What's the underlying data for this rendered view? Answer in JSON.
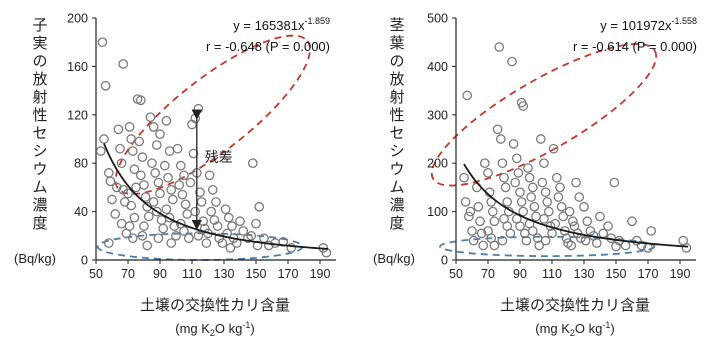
{
  "chart_data": [
    {
      "type": "scatter",
      "ylabel": "子実の放射性セシウム濃度",
      "yunit": "(Bq/kg)",
      "xlabel": "土壌の交換性カリ含量",
      "xunit": {
        "prefix": "(mg K",
        "sub": "2",
        "mid": "O kg",
        "sup": "-1",
        "suffix": ")"
      },
      "xlim": [
        50,
        200
      ],
      "ylim": [
        0,
        200
      ],
      "xticks": [
        50,
        70,
        90,
        110,
        130,
        150,
        170,
        190
      ],
      "yticks": [
        0,
        40,
        80,
        120,
        160,
        200
      ],
      "equation": {
        "prefix": "y = 165381x",
        "exp": "-1.859"
      },
      "correlation": "r = -0.648 (P = 0.000)",
      "fit": {
        "a": 165381,
        "b": -1.859,
        "x_range": [
          55,
          195
        ]
      },
      "annotation": "残差",
      "residual_arrow": {
        "x": 113,
        "y_from": 125,
        "y_to": 24
      },
      "ellipses": [
        {
          "name": "high-residual",
          "color": "#c0392b",
          "cx": 123,
          "cy": 120,
          "rx": 75,
          "ry": 30,
          "angle_deg": -38
        },
        {
          "name": "low-residual",
          "color": "#4a7fa8",
          "cx": 115,
          "cy": 11,
          "rx": 64,
          "ry": 11,
          "angle_deg": 0
        }
      ],
      "points": [
        [
          54,
          180
        ],
        [
          56,
          144
        ],
        [
          53,
          90
        ],
        [
          55,
          100
        ],
        [
          58,
          72
        ],
        [
          59,
          65
        ],
        [
          60,
          50
        ],
        [
          62,
          38
        ],
        [
          58,
          14
        ],
        [
          64,
          108
        ],
        [
          67,
          162
        ],
        [
          65,
          92
        ],
        [
          66,
          80
        ],
        [
          67,
          58
        ],
        [
          68,
          48
        ],
        [
          66,
          30
        ],
        [
          69,
          22
        ],
        [
          63,
          60
        ],
        [
          71,
          110
        ],
        [
          72,
          100
        ],
        [
          73,
          90
        ],
        [
          74,
          75
        ],
        [
          75,
          60
        ],
        [
          70,
          55
        ],
        [
          72,
          45
        ],
        [
          74,
          35
        ],
        [
          71,
          28
        ],
        [
          73,
          18
        ],
        [
          76,
          133
        ],
        [
          78,
          132
        ],
        [
          77,
          98
        ],
        [
          79,
          85
        ],
        [
          78,
          70
        ],
        [
          80,
          62
        ],
        [
          81,
          52
        ],
        [
          82,
          44
        ],
        [
          83,
          36
        ],
        [
          80,
          28
        ],
        [
          79,
          20
        ],
        [
          82,
          12
        ],
        [
          84,
          118
        ],
        [
          86,
          110
        ],
        [
          88,
          95
        ],
        [
          85,
          80
        ],
        [
          87,
          72
        ],
        [
          89,
          64
        ],
        [
          90,
          55
        ],
        [
          86,
          48
        ],
        [
          88,
          40
        ],
        [
          91,
          33
        ],
        [
          92,
          26
        ],
        [
          89,
          18
        ],
        [
          90,
          104
        ],
        [
          94,
          115
        ],
        [
          96,
          90
        ],
        [
          93,
          78
        ],
        [
          95,
          68
        ],
        [
          97,
          58
        ],
        [
          98,
          50
        ],
        [
          94,
          42
        ],
        [
          96,
          35
        ],
        [
          99,
          28
        ],
        [
          100,
          20
        ],
        [
          97,
          14
        ],
        [
          101,
          92
        ],
        [
          103,
          78
        ],
        [
          105,
          70
        ],
        [
          102,
          62
        ],
        [
          104,
          54
        ],
        [
          106,
          46
        ],
        [
          107,
          38
        ],
        [
          103,
          30
        ],
        [
          105,
          24
        ],
        [
          108,
          18
        ],
        [
          110,
          112
        ],
        [
          112,
          117
        ],
        [
          114,
          125
        ],
        [
          111,
          88
        ],
        [
          113,
          72
        ],
        [
          109,
          64
        ],
        [
          115,
          56
        ],
        [
          116,
          48
        ],
        [
          112,
          40
        ],
        [
          117,
          32
        ],
        [
          118,
          26
        ],
        [
          114,
          20
        ],
        [
          119,
          14
        ],
        [
          121,
          70
        ],
        [
          123,
          58
        ],
        [
          125,
          48
        ],
        [
          122,
          40
        ],
        [
          124,
          33
        ],
        [
          126,
          28
        ],
        [
          120,
          22
        ],
        [
          127,
          18
        ],
        [
          129,
          14
        ],
        [
          131,
          42
        ],
        [
          133,
          35
        ],
        [
          135,
          28
        ],
        [
          132,
          22
        ],
        [
          136,
          18
        ],
        [
          138,
          14
        ],
        [
          134,
          10
        ],
        [
          140,
          32
        ],
        [
          142,
          24
        ],
        [
          145,
          18
        ],
        [
          148,
          80
        ],
        [
          150,
          30
        ],
        [
          152,
          44
        ],
        [
          147,
          20
        ],
        [
          151,
          12
        ],
        [
          155,
          18
        ],
        [
          158,
          12
        ],
        [
          162,
          14
        ],
        [
          167,
          15
        ],
        [
          172,
          10
        ],
        [
          192,
          10
        ],
        [
          194,
          6
        ]
      ]
    },
    {
      "type": "scatter",
      "ylabel": "茎葉の放射性セシウム濃度",
      "yunit": "(Bq/kg)",
      "xlabel": "土壌の交換性カリ含量",
      "xunit": {
        "prefix": "(mg K",
        "sub": "2",
        "mid": "O kg",
        "sup": "-1",
        "suffix": ")"
      },
      "xlim": [
        50,
        200
      ],
      "ylim": [
        0,
        500
      ],
      "xticks": [
        50,
        70,
        90,
        110,
        130,
        150,
        170,
        190
      ],
      "yticks": [
        0,
        100,
        200,
        300,
        400,
        500
      ],
      "equation": {
        "prefix": "y = 101972x",
        "exp": "-1.558"
      },
      "correlation": "r = -0.614 (P = 0.000)",
      "fit": {
        "a": 101972,
        "b": -1.558,
        "x_range": [
          55,
          195
        ]
      },
      "ellipses": [
        {
          "name": "high-residual",
          "color": "#c0392b",
          "cx": 105,
          "cy": 300,
          "rx": 80,
          "ry": 72,
          "angle_deg": -30
        },
        {
          "name": "low-residual",
          "color": "#4a7fa8",
          "cx": 107,
          "cy": 28,
          "rx": 67,
          "ry": 20,
          "angle_deg": 0
        }
      ],
      "points": [
        [
          55,
          170
        ],
        [
          57,
          340
        ],
        [
          56,
          120
        ],
        [
          58,
          90
        ],
        [
          60,
          60
        ],
        [
          61,
          40
        ],
        [
          59,
          100
        ],
        [
          63,
          150
        ],
        [
          64,
          110
        ],
        [
          65,
          80
        ],
        [
          66,
          55
        ],
        [
          67,
          30
        ],
        [
          68,
          200
        ],
        [
          70,
          180
        ],
        [
          71,
          140
        ],
        [
          72,
          120
        ],
        [
          73,
          100
        ],
        [
          74,
          80
        ],
        [
          70,
          60
        ],
        [
          72,
          45
        ],
        [
          74,
          30
        ],
        [
          76,
          270
        ],
        [
          77,
          440
        ],
        [
          78,
          250
        ],
        [
          79,
          200
        ],
        [
          80,
          170
        ],
        [
          81,
          150
        ],
        [
          82,
          120
        ],
        [
          83,
          100
        ],
        [
          80,
          85
        ],
        [
          82,
          70
        ],
        [
          84,
          55
        ],
        [
          79,
          40
        ],
        [
          85,
          410
        ],
        [
          86,
          240
        ],
        [
          88,
          210
        ],
        [
          89,
          180
        ],
        [
          87,
          160
        ],
        [
          90,
          140
        ],
        [
          91,
          120
        ],
        [
          92,
          100
        ],
        [
          88,
          85
        ],
        [
          90,
          70
        ],
        [
          93,
          55
        ],
        [
          94,
          40
        ],
        [
          91,
          325
        ],
        [
          92,
          318
        ],
        [
          95,
          190
        ],
        [
          96,
          170
        ],
        [
          98,
          150
        ],
        [
          97,
          130
        ],
        [
          99,
          110
        ],
        [
          100,
          90
        ],
        [
          96,
          75
        ],
        [
          98,
          60
        ],
        [
          101,
          45
        ],
        [
          102,
          30
        ],
        [
          103,
          250
        ],
        [
          105,
          200
        ],
        [
          104,
          160
        ],
        [
          106,
          140
        ],
        [
          107,
          120
        ],
        [
          108,
          100
        ],
        [
          105,
          85
        ],
        [
          109,
          70
        ],
        [
          110,
          55
        ],
        [
          106,
          40
        ],
        [
          111,
          230
        ],
        [
          113,
          170
        ],
        [
          115,
          150
        ],
        [
          114,
          130
        ],
        [
          116,
          110
        ],
        [
          117,
          90
        ],
        [
          112,
          75
        ],
        [
          118,
          60
        ],
        [
          119,
          45
        ],
        [
          120,
          35
        ],
        [
          121,
          100
        ],
        [
          123,
          80
        ],
        [
          125,
          160
        ],
        [
          127,
          130
        ],
        [
          124,
          70
        ],
        [
          126,
          55
        ],
        [
          128,
          45
        ],
        [
          122,
          30
        ],
        [
          130,
          110
        ],
        [
          132,
          80
        ],
        [
          134,
          60
        ],
        [
          136,
          50
        ],
        [
          131,
          40
        ],
        [
          138,
          35
        ],
        [
          140,
          90
        ],
        [
          142,
          55
        ],
        [
          145,
          70
        ],
        [
          147,
          45
        ],
        [
          149,
          160
        ],
        [
          152,
          40
        ],
        [
          150,
          28
        ],
        [
          156,
          30
        ],
        [
          160,
          80
        ],
        [
          163,
          40
        ],
        [
          166,
          30
        ],
        [
          170,
          25
        ],
        [
          172,
          60
        ],
        [
          192,
          40
        ],
        [
          194,
          25
        ]
      ]
    }
  ]
}
